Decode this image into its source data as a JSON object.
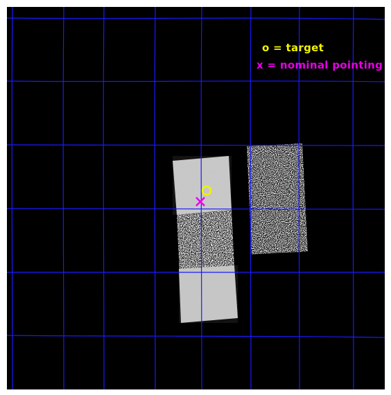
{
  "legend": {
    "target_label": "o = target",
    "nominal_label": "x = nominal pointing"
  },
  "colors": {
    "background": "#000000",
    "grid": "#1a1aff",
    "target_marker": "#f2f200",
    "nominal_marker": "#e600e6",
    "frame": "#ffffff"
  },
  "markers": {
    "target_symbol": "circle",
    "nominal_symbol": "cross"
  }
}
